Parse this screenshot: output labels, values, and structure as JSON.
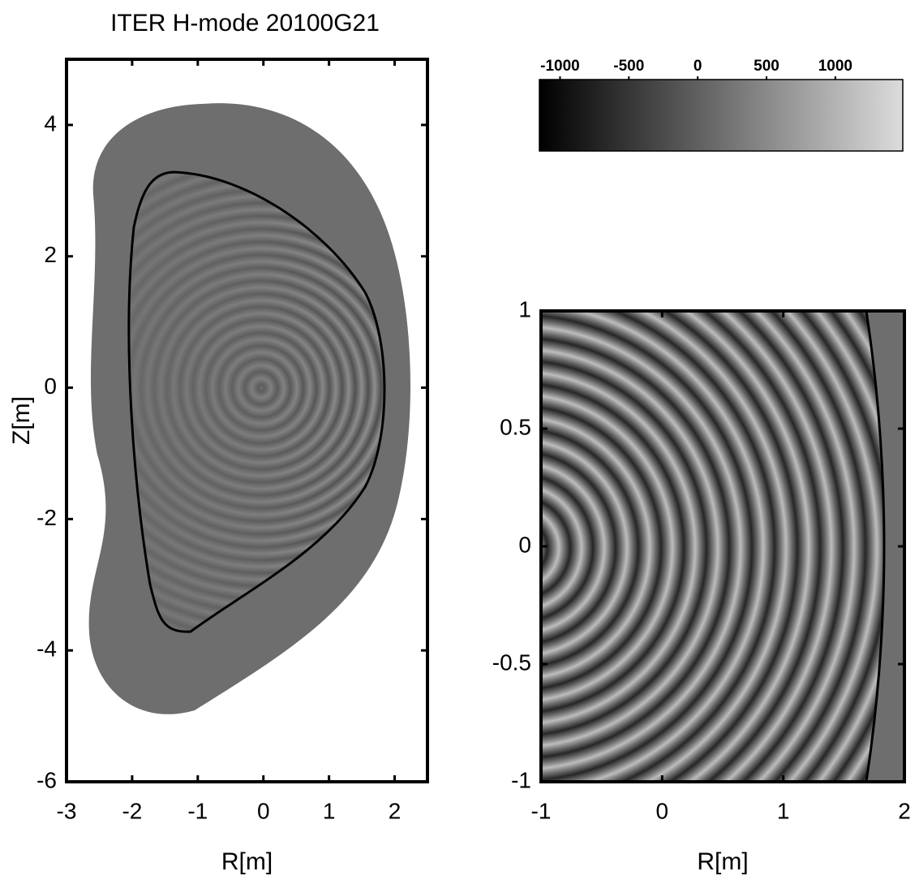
{
  "chart_data": [
    {
      "type": "field",
      "title": "ITER H-mode 20100G21",
      "xlabel": "R[m]",
      "ylabel": "Z[m]",
      "xlim": [
        -3,
        2.5
      ],
      "ylim": [
        -6,
        5
      ],
      "xticks": [
        -3,
        -2,
        -1,
        0,
        1,
        2
      ],
      "yticks": [
        -6,
        -4,
        -2,
        0,
        2,
        4
      ]
    },
    {
      "type": "colorbar",
      "xlim": [
        -1150,
        1490
      ],
      "xticks": [
        -1000,
        -500,
        0,
        500,
        1000
      ],
      "colors": [
        "#000000",
        "#dcdcdc"
      ]
    },
    {
      "type": "field",
      "xlabel": "R[m]",
      "xlim": [
        -1,
        2
      ],
      "ylim": [
        -1,
        1
      ],
      "xticks": [
        -1,
        0,
        1,
        2
      ],
      "yticks": [
        -1,
        -0.5,
        0,
        0.5,
        1
      ]
    }
  ]
}
